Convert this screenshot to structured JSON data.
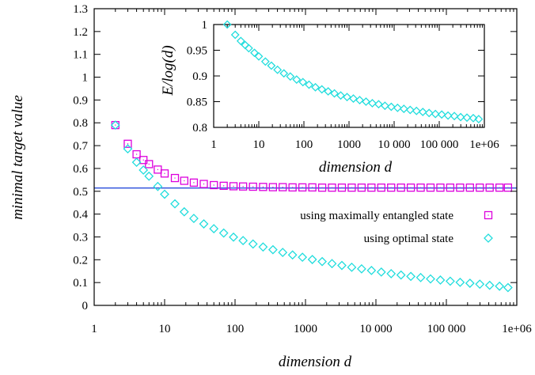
{
  "chart_data": [
    {
      "type": "scatter",
      "title": "",
      "xlabel": "dimension d",
      "ylabel": "minimal target value",
      "xscale": "log",
      "xlim": [
        1,
        1000000
      ],
      "ylim": [
        0,
        1.3
      ],
      "xticks": [
        {
          "value": 1,
          "label": "1"
        },
        {
          "value": 10,
          "label": "10"
        },
        {
          "value": 100,
          "label": "100"
        },
        {
          "value": 1000,
          "label": "1000"
        },
        {
          "value": 10000,
          "label": "10 000"
        },
        {
          "value": 100000,
          "label": "100 000"
        },
        {
          "value": 1000000,
          "label": "1e+06"
        }
      ],
      "yticks": [
        {
          "value": 0,
          "label": "0"
        },
        {
          "value": 0.1,
          "label": "0.1"
        },
        {
          "value": 0.2,
          "label": "0.2"
        },
        {
          "value": 0.3,
          "label": "0.3"
        },
        {
          "value": 0.4,
          "label": "0.4"
        },
        {
          "value": 0.5,
          "label": "0.5"
        },
        {
          "value": 0.6,
          "label": "0.6"
        },
        {
          "value": 0.7,
          "label": "0.7"
        },
        {
          "value": 0.8,
          "label": "0.8"
        },
        {
          "value": 0.9,
          "label": "0.9"
        },
        {
          "value": 1,
          "label": "1"
        },
        {
          "value": 1.1,
          "label": "1.1"
        },
        {
          "value": 1.2,
          "label": "1.2"
        },
        {
          "value": 1.3,
          "label": "1.3"
        }
      ],
      "legend_position": "right",
      "reference_line": {
        "y": 0.5142,
        "color": "#3355dd"
      },
      "series": [
        {
          "name": "using maximally entangled state",
          "marker": "square",
          "color": "#dd00dd",
          "x": [
            2,
            3,
            4,
            5,
            6,
            8,
            10,
            14,
            19,
            26,
            36,
            50,
            69,
            95,
            130,
            180,
            250,
            345,
            475,
            655,
            905,
            1250,
            1725,
            2380,
            3285,
            4535,
            6260,
            8640,
            11920,
            16450,
            22700,
            31300,
            43200,
            59600,
            82300,
            113500,
            156700,
            216200,
            298300,
            411700,
            568200,
            750000
          ],
          "y": [
            0.79,
            0.708,
            0.662,
            0.637,
            0.619,
            0.595,
            0.578,
            0.558,
            0.546,
            0.538,
            0.532,
            0.527,
            0.524,
            0.522,
            0.521,
            0.52,
            0.519,
            0.518,
            0.518,
            0.517,
            0.517,
            0.517,
            0.516,
            0.516,
            0.516,
            0.516,
            0.516,
            0.516,
            0.516,
            0.516,
            0.516,
            0.516,
            0.516,
            0.516,
            0.516,
            0.516,
            0.516,
            0.516,
            0.516,
            0.516,
            0.516,
            0.516
          ]
        },
        {
          "name": "using optimal state",
          "marker": "diamond",
          "color": "#22dddd",
          "x": [
            2,
            3,
            4,
            5,
            6,
            8,
            10,
            14,
            19,
            26,
            36,
            50,
            69,
            95,
            130,
            180,
            250,
            345,
            475,
            655,
            905,
            1250,
            1725,
            2380,
            3285,
            4535,
            6260,
            8640,
            11920,
            16450,
            22700,
            31300,
            43200,
            59600,
            82300,
            113500,
            156700,
            216200,
            298300,
            411700,
            568200,
            750000
          ],
          "y": [
            0.79,
            0.686,
            0.627,
            0.593,
            0.566,
            0.521,
            0.487,
            0.445,
            0.41,
            0.381,
            0.357,
            0.336,
            0.317,
            0.299,
            0.284,
            0.269,
            0.256,
            0.244,
            0.232,
            0.221,
            0.211,
            0.201,
            0.192,
            0.183,
            0.175,
            0.167,
            0.16,
            0.153,
            0.146,
            0.139,
            0.133,
            0.127,
            0.122,
            0.116,
            0.111,
            0.106,
            0.101,
            0.097,
            0.093,
            0.088,
            0.084,
            0.078
          ]
        }
      ]
    },
    {
      "type": "scatter",
      "title": "",
      "xlabel": "dimension d",
      "ylabel": "E/log(d)",
      "xscale": "log",
      "xlim": [
        1,
        1000000
      ],
      "ylim": [
        0.8,
        1.0
      ],
      "xticks": [
        {
          "value": 1,
          "label": "1"
        },
        {
          "value": 10,
          "label": "10"
        },
        {
          "value": 100,
          "label": "100"
        },
        {
          "value": 1000,
          "label": "1000"
        },
        {
          "value": 10000,
          "label": "10 000"
        },
        {
          "value": 100000,
          "label": "100 000"
        },
        {
          "value": 1000000,
          "label": "1e+06"
        }
      ],
      "yticks": [
        {
          "value": 0.8,
          "label": "0.8"
        },
        {
          "value": 0.85,
          "label": "0.85"
        },
        {
          "value": 0.9,
          "label": "0.9"
        },
        {
          "value": 0.95,
          "label": "0.95"
        },
        {
          "value": 1,
          "label": "1"
        }
      ],
      "series": [
        {
          "marker": "diamond",
          "color": "#22dddd",
          "x": [
            2,
            3,
            4,
            5,
            6,
            8,
            10,
            14,
            19,
            26,
            36,
            50,
            69,
            95,
            130,
            180,
            250,
            345,
            475,
            655,
            905,
            1250,
            1725,
            2380,
            3285,
            4535,
            6260,
            8640,
            11920,
            16450,
            22700,
            31300,
            43200,
            59600,
            82300,
            113500,
            156700,
            216200,
            298300,
            411700,
            568200,
            750000
          ],
          "y": [
            1.0,
            0.98,
            0.968,
            0.96,
            0.954,
            0.945,
            0.938,
            0.928,
            0.92,
            0.912,
            0.905,
            0.899,
            0.893,
            0.888,
            0.883,
            0.878,
            0.874,
            0.87,
            0.866,
            0.862,
            0.859,
            0.856,
            0.853,
            0.85,
            0.847,
            0.845,
            0.842,
            0.84,
            0.838,
            0.836,
            0.834,
            0.832,
            0.83,
            0.828,
            0.826,
            0.825,
            0.823,
            0.822,
            0.82,
            0.819,
            0.818,
            0.816
          ]
        }
      ]
    }
  ]
}
